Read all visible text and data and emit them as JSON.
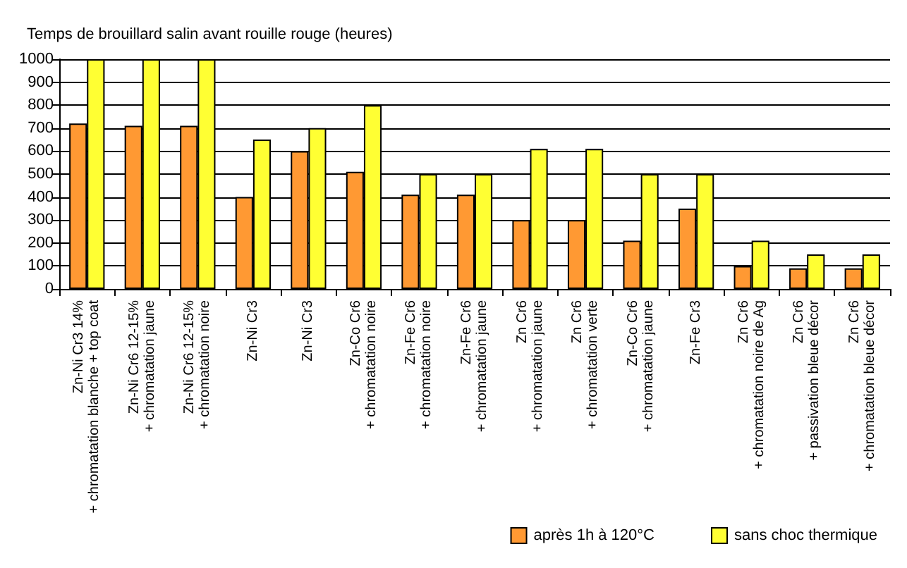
{
  "chart_data": {
    "type": "bar",
    "title": "Temps de brouillard salin avant rouille rouge (heures)",
    "categories": [
      "Zn-Ni Cr3 14%\n+ chromatation blanche + top coat",
      "Zn-Ni Cr6 12-15%\n+ chromatation jaune",
      "Zn-Ni Cr6 12-15%\n+ chromatation noire",
      "Zn-Ni Cr3",
      "Zn-Ni Cr3",
      "Zn-Co Cr6\n+ chromatation noire",
      "Zn-Fe Cr6\n+ chromatation noire",
      "Zn-Fe Cr6\n+ chromatation jaune",
      "Zn Cr6\n+ chromatation jaune",
      "Zn Cr6\n+ chromatation verte",
      "Zn-Co Cr6\n+ chromatation jaune",
      "Zn-Fe Cr3",
      "Zn Cr6\n+ chromatation noire de Ag",
      "Zn Cr6\n+ passivation bleue décor",
      "Zn Cr6\n+ chromatation bleue décor"
    ],
    "series": [
      {
        "name": "après 1h à 120°C",
        "color": "#ff9933",
        "values": [
          720,
          710,
          710,
          400,
          600,
          510,
          410,
          410,
          300,
          300,
          210,
          350,
          100,
          90,
          90
        ]
      },
      {
        "name": "sans choc thermique",
        "color": "#ffff33",
        "values": [
          1000,
          1000,
          1000,
          650,
          700,
          800,
          500,
          500,
          610,
          610,
          500,
          500,
          210,
          150,
          150
        ]
      }
    ],
    "ylim": [
      0,
      1000
    ],
    "yticks": [
      0,
      100,
      200,
      300,
      400,
      500,
      600,
      700,
      800,
      900,
      1000
    ],
    "grid": "y",
    "legend": "bottom right"
  }
}
